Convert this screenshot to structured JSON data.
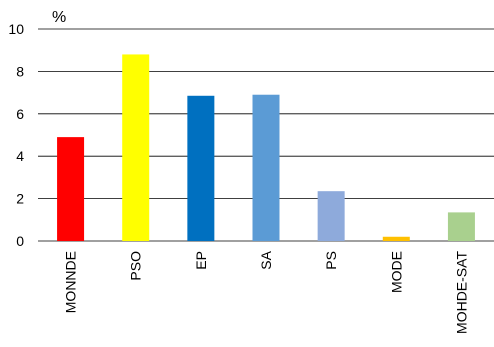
{
  "chart_data": {
    "type": "bar",
    "ylabel": "%",
    "ylim": [
      0,
      10
    ],
    "yticks": [
      0,
      2,
      4,
      6,
      8,
      10
    ],
    "grid": true,
    "categories": [
      "MONNDE",
      "PSO",
      "EP",
      "SA",
      "PS",
      "MODE",
      "MOHDE-SAT"
    ],
    "values": [
      4.9,
      8.8,
      6.85,
      6.9,
      2.35,
      0.2,
      1.35
    ],
    "colors": [
      "#ff0000",
      "#ffff00",
      "#0070c0",
      "#5b9bd5",
      "#8eaadb",
      "#ffc000",
      "#a9d08e"
    ]
  }
}
